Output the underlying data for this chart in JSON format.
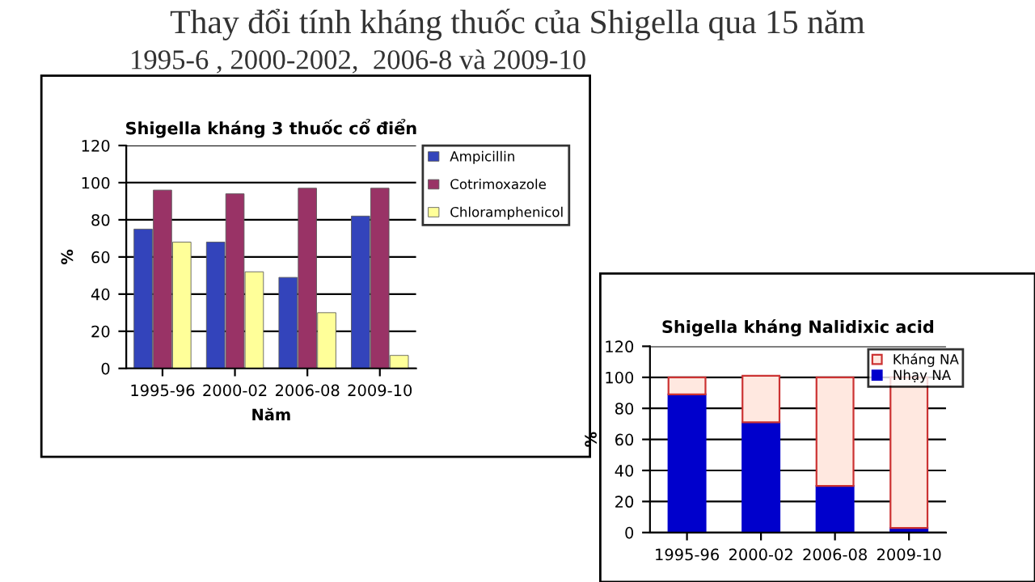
{
  "chart_data": [
    {
      "type": "other",
      "title": "Thay đổi tính kháng thuốc của Shigella qua 15 năm",
      "subtitle": "1995-6 , 2000-2002,  2006-8 và 2009-10"
    },
    {
      "type": "bar",
      "title": "Shigella kháng 3 thuốc cổ điển",
      "xlabel": "Năm",
      "ylabel": "%",
      "categories": [
        "1995-96",
        "2000-02",
        "2006-08",
        "2009-10"
      ],
      "series": [
        {
          "name": "Ampicillin",
          "color": "#3344bb",
          "values": [
            75,
            68,
            49,
            82
          ]
        },
        {
          "name": "Cotrimoxazole",
          "color": "#993366",
          "values": [
            96,
            94,
            97,
            97
          ]
        },
        {
          "name": "Chloramphenicol",
          "color": "#ffff99",
          "values": [
            68,
            52,
            30,
            7
          ]
        }
      ],
      "ylim": [
        0,
        120
      ],
      "yticks": [
        0,
        20,
        40,
        60,
        80,
        100,
        120
      ],
      "grid": "y",
      "legend": "top right"
    },
    {
      "type": "bar",
      "stacked": true,
      "title": "Shigella kháng Nalidixic acid",
      "ylabel": "%",
      "categories": [
        "1995-96",
        "2000-02",
        "2006-08",
        "2009-10"
      ],
      "series": [
        {
          "name": "Nhạy NA",
          "color": "#0000cc",
          "values": [
            89,
            71,
            30,
            3
          ]
        },
        {
          "name": "Kháng NA",
          "color": "#ffe8e0",
          "values": [
            11,
            30,
            70,
            97
          ]
        }
      ],
      "ylim": [
        0,
        120
      ],
      "yticks": [
        0,
        20,
        40,
        60,
        80,
        100,
        120
      ],
      "grid": "y",
      "legend": "top right"
    }
  ]
}
